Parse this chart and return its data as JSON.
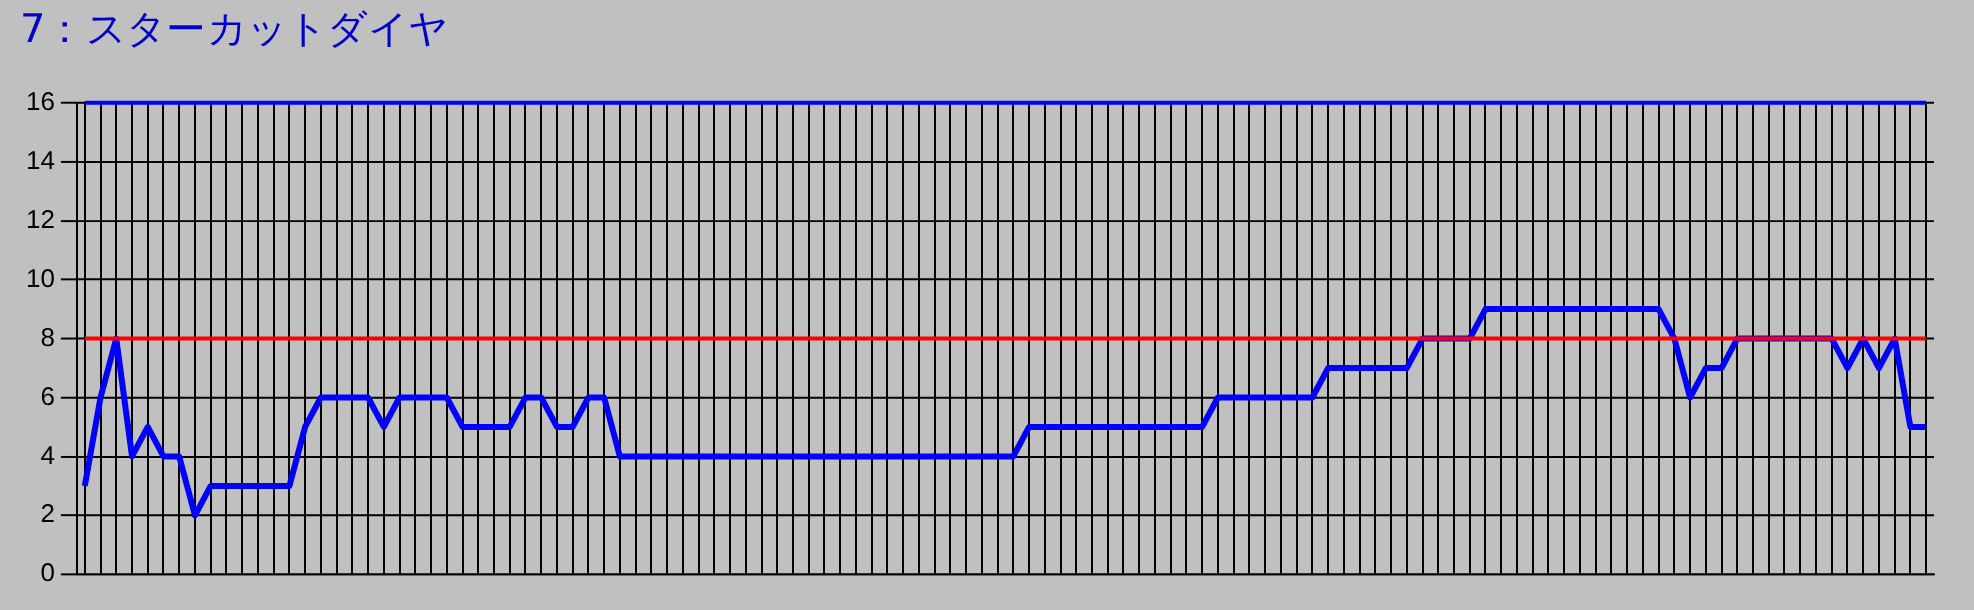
{
  "chart_data": {
    "type": "line",
    "title": "7：スターカットダイヤ",
    "categories": [
      null,
      null,
      null,
      null,
      null,
      null,
      null,
      null,
      null,
      null,
      null,
      null,
      null,
      null,
      null,
      null,
      null,
      null,
      null,
      null,
      null,
      null,
      null,
      null,
      null,
      null,
      null,
      null,
      null,
      null,
      null,
      null,
      null,
      null,
      null,
      null,
      null,
      null,
      null,
      null,
      null,
      null,
      null,
      null,
      null,
      null,
      null,
      null,
      null,
      null,
      null,
      null,
      null,
      null,
      null,
      null,
      null,
      null,
      null,
      null,
      null,
      null,
      null,
      null,
      null,
      null,
      null,
      null,
      null,
      null,
      null,
      null,
      null,
      null,
      null,
      null,
      null,
      null,
      null,
      null,
      null,
      null,
      null,
      null,
      null,
      null,
      null,
      null,
      null,
      null,
      null,
      null,
      null,
      null,
      null,
      null,
      null,
      null,
      null,
      null,
      null,
      null,
      null,
      null,
      null,
      null,
      null,
      null,
      null,
      null,
      null,
      null,
      null,
      null,
      null,
      null,
      null,
      null
    ],
    "series": [
      {
        "color": "#0000ff",
        "values": [
          3,
          6,
          8,
          4,
          5,
          4,
          4,
          2,
          3,
          3,
          3,
          3,
          3,
          3,
          5,
          6,
          6,
          6,
          6,
          5,
          6,
          6,
          6,
          6,
          5,
          5,
          5,
          5,
          6,
          6,
          5,
          5,
          6,
          6,
          4,
          4,
          4,
          4,
          4,
          4,
          4,
          4,
          4,
          4,
          4,
          4,
          4,
          4,
          4,
          4,
          4,
          4,
          4,
          4,
          4,
          4,
          4,
          4,
          4,
          4,
          5,
          5,
          5,
          5,
          5,
          5,
          5,
          5,
          5,
          5,
          5,
          5,
          6,
          6,
          6,
          6,
          6,
          6,
          6,
          7,
          7,
          7,
          7,
          7,
          7,
          8,
          8,
          8,
          8,
          9,
          9,
          9,
          9,
          9,
          9,
          9,
          9,
          9,
          9,
          9,
          9,
          8,
          6,
          7,
          7,
          8,
          8,
          8,
          8,
          8,
          8,
          8,
          7,
          8,
          7,
          8,
          5,
          5
        ]
      }
    ],
    "ylim": [
      0,
      16
    ],
    "yticks": [
      0,
      2,
      4,
      6,
      8,
      10,
      12,
      14,
      16
    ],
    "grid": true,
    "tick_labels": "y",
    "legend": false,
    "marker": "none",
    "line_style": "solid",
    "ref_lines": [
      {
        "axis": "y",
        "value": 16,
        "color": "#0000ff"
      },
      {
        "axis": "y",
        "value": 8,
        "color": "#ff0000"
      }
    ]
  }
}
